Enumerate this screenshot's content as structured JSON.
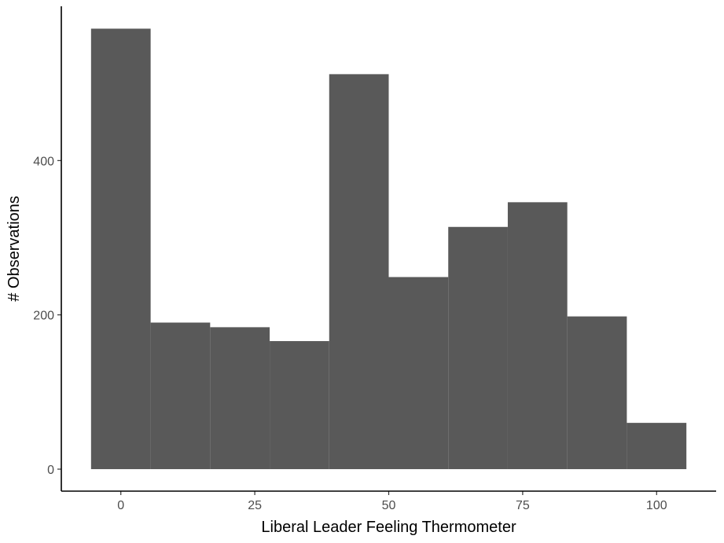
{
  "chart_data": {
    "type": "bar",
    "title": "",
    "xlabel": "Liberal Leader Feeling Thermometer",
    "ylabel": "# Observations",
    "bin_width": 11.11,
    "bins": [
      {
        "x_start": -5.56,
        "x_end": 5.56,
        "count": 571
      },
      {
        "x_start": 5.56,
        "x_end": 16.67,
        "count": 190
      },
      {
        "x_start": 16.67,
        "x_end": 27.78,
        "count": 184
      },
      {
        "x_start": 27.78,
        "x_end": 38.89,
        "count": 166
      },
      {
        "x_start": 38.89,
        "x_end": 50.0,
        "count": 512
      },
      {
        "x_start": 50.0,
        "x_end": 61.11,
        "count": 249
      },
      {
        "x_start": 61.11,
        "x_end": 72.22,
        "count": 314
      },
      {
        "x_start": 72.22,
        "x_end": 83.33,
        "count": 346
      },
      {
        "x_start": 83.33,
        "x_end": 94.44,
        "count": 198
      },
      {
        "x_start": 94.44,
        "x_end": 105.56,
        "count": 60
      }
    ],
    "xlim": [
      -11.11,
      111.11
    ],
    "ylim": [
      -28.5,
      600
    ],
    "x_ticks": [
      0,
      25,
      50,
      75,
      100
    ],
    "y_ticks": [
      0,
      200,
      400
    ],
    "bar_color": "#595959",
    "grid": false,
    "legend": "none"
  }
}
